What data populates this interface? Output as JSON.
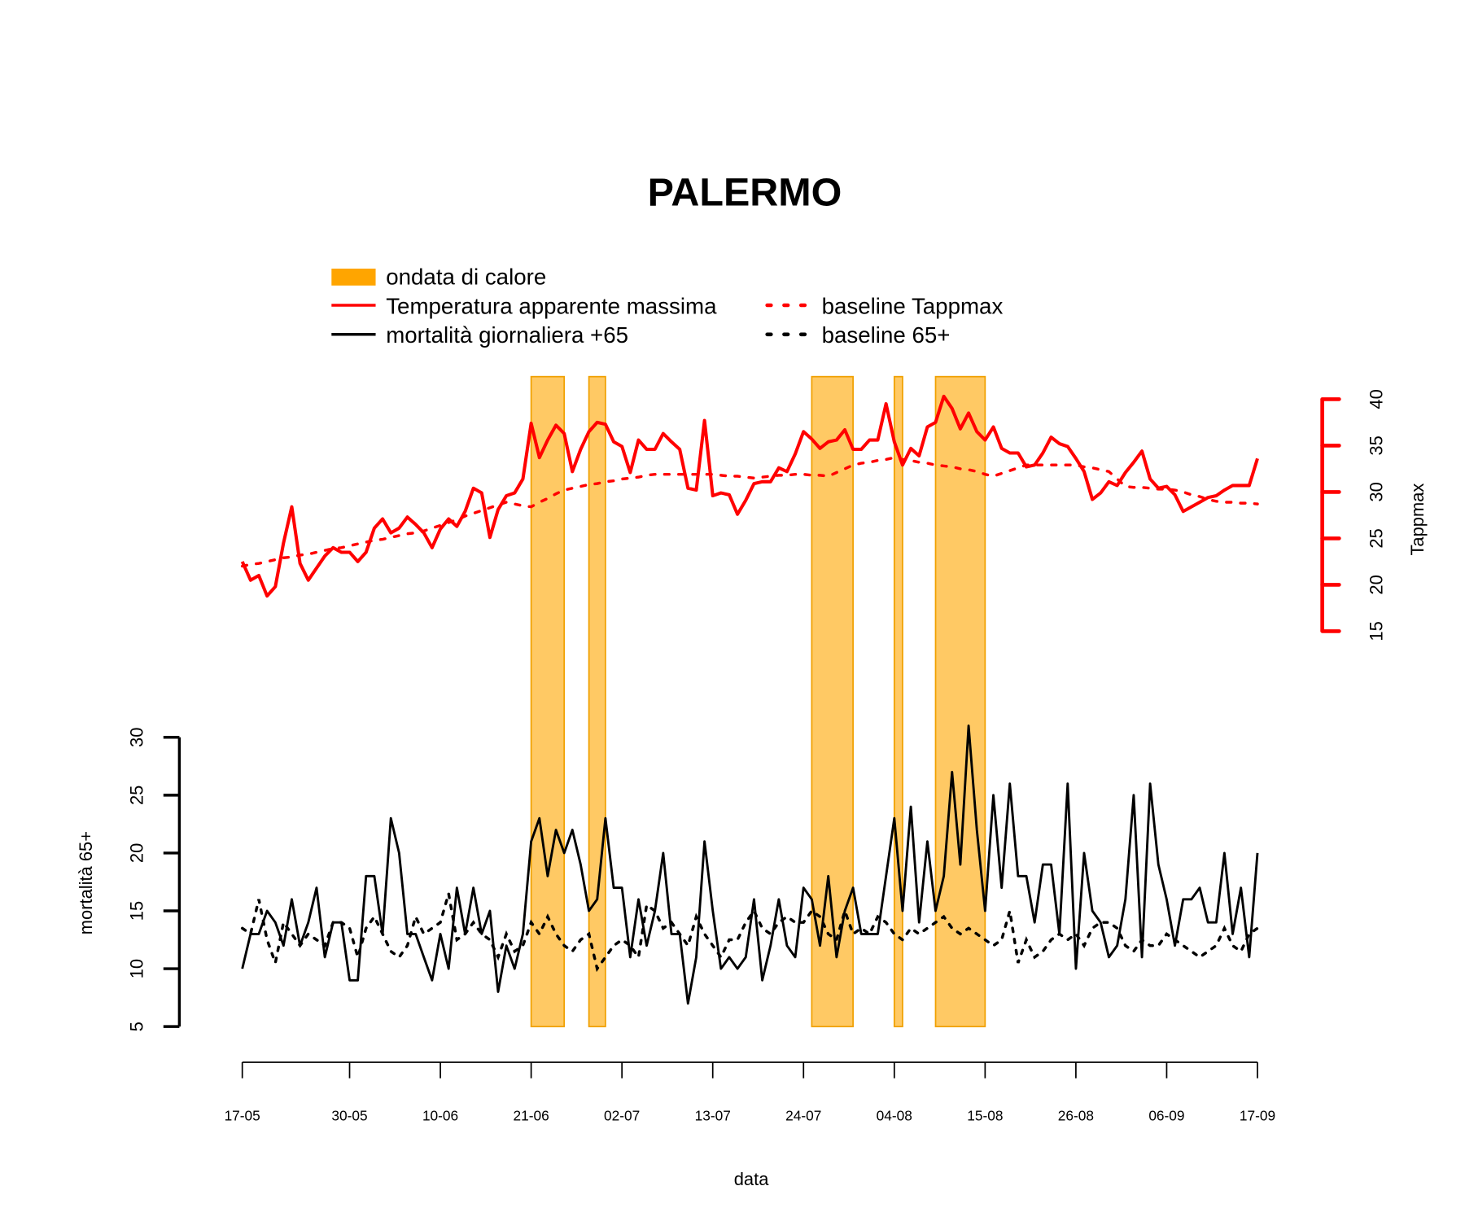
{
  "colors": {
    "heatwave_fill": "#FFC964",
    "heatwave_stroke": "#F0A000",
    "heatwave_legend": "#FFA500",
    "temperature": "#FF0000",
    "mortality": "#000000"
  },
  "chart_data": {
    "type": "line",
    "title": "PALERMO",
    "xlabel": "data",
    "ylabel_left": "mortalità 65+",
    "ylabel_right": "Tappmax",
    "x_start": "17-05",
    "x_end": "17-09",
    "x_ticks": [
      "17-05",
      "30-05",
      "10-06",
      "21-06",
      "02-07",
      "13-07",
      "24-07",
      "04-08",
      "15-08",
      "26-08",
      "06-09",
      "17-09"
    ],
    "y_left_ticks": [
      "5",
      "10",
      "15",
      "20",
      "25",
      "30"
    ],
    "y_left_range": [
      5,
      30
    ],
    "y_right_ticks": [
      "15",
      "20",
      "25",
      "30",
      "35",
      "40"
    ],
    "y_right_range": [
      15,
      40
    ],
    "legend": {
      "heatwave": "ondata di calore",
      "temperature": "Temperatura apparente massima",
      "mortality": "mortalità giornaliera +65",
      "baseline_temperature": "baseline Tappmax",
      "baseline_mortality": "baseline 65+"
    },
    "heatwaves": [
      {
        "start": "21-06",
        "end": "25-06"
      },
      {
        "start": "28-06",
        "end": "30-06"
      },
      {
        "start": "25-07",
        "end": "30-07"
      },
      {
        "start": "04-08",
        "end": "05-08"
      },
      {
        "start": "09-08",
        "end": "15-08"
      }
    ],
    "series": {
      "temperature": [
        22.5,
        20.5,
        21,
        18.8,
        19.8,
        24.5,
        28.4,
        22.3,
        20.5,
        21.8,
        23.1,
        24,
        23.5,
        23.5,
        22.5,
        23.5,
        26.1,
        27.1,
        25.6,
        26.1,
        27.3,
        26.5,
        25.6,
        24,
        26,
        27.1,
        26.3,
        27.9,
        30.4,
        29.9,
        25.1,
        28.1,
        29.6,
        29.9,
        31.4,
        37.4,
        33.7,
        35.6,
        37.2,
        36.3,
        32.2,
        34.6,
        36.5,
        37.5,
        37.3,
        35.4,
        34.9,
        32.1,
        35.6,
        34.6,
        34.6,
        36.3,
        35.4,
        34.6,
        30.4,
        30.2,
        37.7,
        29.6,
        29.9,
        29.7,
        27.6,
        29.1,
        30.9,
        31.1,
        31.1,
        32.6,
        32.2,
        34.1,
        36.5,
        35.7,
        34.7,
        35.4,
        35.6,
        36.7,
        34.6,
        34.6,
        35.6,
        35.6,
        39.5,
        35.4,
        32.9,
        34.7,
        33.9,
        37,
        37.5,
        40.3,
        39,
        36.8,
        38.5,
        36.5,
        35.6,
        37,
        34.7,
        34.2,
        34.2,
        32.7,
        32.9,
        34.2,
        35.9,
        35.2,
        34.9,
        33.6,
        32.2,
        29.2,
        29.9,
        31.1,
        30.7,
        32.1,
        33.2,
        34.4,
        31.4,
        30.4,
        30.6,
        29.7,
        27.9,
        28.4,
        28.9,
        29.4,
        29.6,
        30.2,
        30.7,
        30.7,
        30.7,
        33.6
      ],
      "baseline_temperature": [
        22,
        22.2,
        22.3,
        22.5,
        22.7,
        22.9,
        23,
        23.2,
        23.3,
        23.5,
        23.7,
        23.9,
        24,
        24.2,
        24.4,
        24.6,
        24.8,
        24.9,
        25.1,
        25.3,
        25.5,
        25.6,
        25.8,
        26.1,
        26.4,
        26.7,
        27,
        27.4,
        27.7,
        28,
        28.3,
        28.6,
        28.9,
        28.7,
        28.5,
        28.4,
        28.9,
        29.3,
        29.8,
        30.2,
        30.4,
        30.6,
        30.8,
        30.9,
        31.1,
        31.2,
        31.4,
        31.5,
        31.6,
        31.8,
        31.9,
        31.9,
        31.9,
        31.9,
        31.9,
        31.9,
        31.9,
        31.9,
        31.8,
        31.7,
        31.7,
        31.6,
        31.5,
        31.6,
        31.7,
        31.8,
        31.8,
        31.9,
        31.9,
        31.8,
        31.8,
        31.7,
        32.1,
        32.5,
        32.9,
        33.1,
        33.2,
        33.4,
        33.5,
        33.7,
        33.5,
        33.4,
        33.2,
        33.1,
        32.9,
        32.8,
        32.7,
        32.5,
        32.4,
        32.2,
        31.9,
        31.7,
        32,
        32.3,
        32.6,
        32.9,
        32.9,
        32.9,
        32.9,
        32.9,
        32.9,
        32.9,
        32.7,
        32.6,
        32.4,
        32.2,
        31.4,
        30.6,
        30.5,
        30.5,
        30.4,
        30.3,
        30.3,
        30.2,
        30,
        29.7,
        29.5,
        29.2,
        29,
        28.9,
        28.9,
        28.8,
        28.8,
        28.7
      ],
      "mortality": [
        10,
        13,
        13,
        15,
        14,
        12,
        16,
        12,
        14,
        17,
        11,
        14,
        14,
        9,
        9,
        18,
        18,
        13,
        23,
        20,
        13,
        13,
        11,
        9,
        13,
        10,
        17,
        13,
        17,
        13,
        15,
        8,
        12,
        10,
        13,
        21,
        23,
        18,
        22,
        20,
        22,
        19,
        15,
        16,
        23,
        17,
        17,
        11,
        16,
        12,
        15,
        20,
        13,
        13,
        7,
        11,
        21,
        15,
        10,
        11,
        10,
        11,
        16,
        9,
        12,
        16,
        12,
        11,
        17,
        16,
        12,
        18,
        11,
        15,
        17,
        13,
        13,
        13,
        18,
        23,
        15,
        24,
        14,
        21,
        15,
        18,
        27,
        19,
        31,
        22,
        15,
        25,
        17,
        26,
        18,
        18,
        14,
        19,
        19,
        13,
        26,
        10,
        20,
        15,
        14,
        11,
        12,
        16,
        25,
        11,
        26,
        19,
        16,
        12,
        16,
        16,
        17,
        14,
        14,
        20,
        13,
        17,
        11,
        20
      ],
      "baseline_mortality": [
        13.5,
        13,
        16,
        12.5,
        10.5,
        14,
        13,
        12,
        13,
        12.5,
        12,
        14,
        14,
        13.5,
        11,
        13.5,
        14.5,
        13,
        11.5,
        11,
        12,
        14.5,
        13,
        13.5,
        14,
        16.5,
        12.5,
        13,
        14,
        13,
        12.5,
        11,
        13,
        11.5,
        12,
        14,
        13,
        14.5,
        13,
        12,
        11.5,
        12.5,
        13,
        10,
        11,
        12,
        12.5,
        12,
        11,
        15.5,
        15,
        13.5,
        14,
        13,
        12,
        14.5,
        13,
        12,
        11,
        12.5,
        12.5,
        14,
        15,
        13.5,
        13,
        14,
        14.5,
        14,
        14,
        15,
        14.5,
        13,
        12.5,
        15,
        13,
        13.5,
        13,
        14.5,
        14,
        13,
        12.5,
        13.5,
        13,
        13.5,
        14,
        14.5,
        13.5,
        13,
        13.5,
        13,
        12.5,
        12,
        12.5,
        15,
        10.5,
        12.5,
        11,
        11.5,
        12.5,
        13,
        12.5,
        13,
        12,
        13.5,
        14,
        14,
        13.5,
        12,
        11.5,
        12.5,
        12,
        12,
        13,
        12.5,
        12,
        11.5,
        11,
        11.5,
        12,
        13.5,
        12,
        11.5,
        13,
        13.5
      ]
    },
    "grid": false,
    "legend_position": "top-left"
  }
}
